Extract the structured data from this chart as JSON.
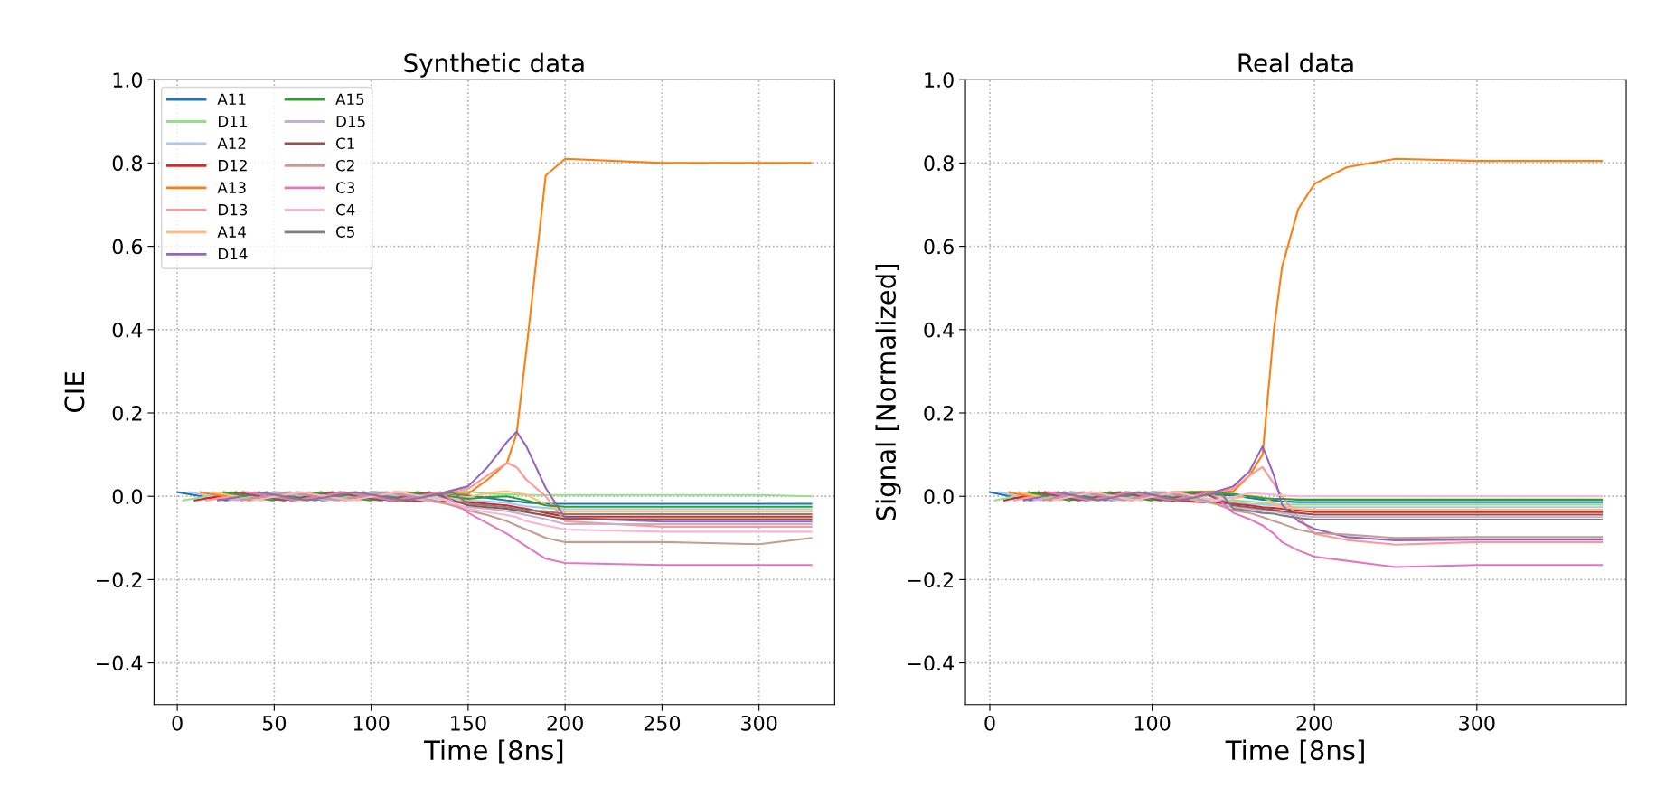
{
  "chart_data": [
    {
      "type": "line",
      "title": "Synthetic data",
      "xlabel": "Time [8ns]",
      "ylabel": "CIE",
      "xlim": [
        -12,
        339
      ],
      "xticks": [
        0,
        50,
        100,
        150,
        200,
        250,
        300
      ],
      "ylim": [
        -0.5,
        1.0
      ],
      "yticks": [
        {
          "value": -0.4,
          "label": "−0.4"
        },
        {
          "value": -0.2,
          "label": "−0.2"
        },
        {
          "value": 0,
          "label": "0.0"
        },
        {
          "value": 0.2,
          "label": "0.2"
        },
        {
          "value": 0.4,
          "label": "0.4"
        },
        {
          "value": 0.6,
          "label": "0.6"
        },
        {
          "value": 0.8,
          "label": "0.8"
        },
        {
          "value": 1.0,
          "label": "1.0"
        }
      ],
      "grid": true,
      "legend": "top left",
      "line_style": "solid",
      "marker": "none",
      "series": [
        {
          "name": "A11",
          "color": "#1f77b4",
          "x": [
            0,
            25,
            50,
            75,
            100,
            150,
            160,
            170,
            175,
            180,
            190,
            200,
            250,
            300,
            327
          ],
          "values": [
            0.01,
            -0.01,
            0.01,
            -0.01,
            0.01,
            0.002,
            -0.004,
            -0.01,
            -0.012,
            -0.015,
            -0.018,
            -0.018,
            -0.018,
            -0.018,
            -0.018
          ]
        },
        {
          "name": "D11",
          "color": "#98df8a",
          "x": [
            3,
            28,
            53,
            78,
            103,
            150,
            160,
            170,
            175,
            180,
            190,
            200,
            250,
            300,
            327
          ],
          "values": [
            -0.01,
            0.01,
            -0.01,
            0.01,
            -0.01,
            0.012,
            0.006,
            0.005,
            0.004,
            0.003,
            0.003,
            0.003,
            0.003,
            0.003,
            0.0
          ]
        },
        {
          "name": "A12",
          "color": "#aec7e8",
          "x": [
            6,
            31,
            56,
            81,
            106,
            150,
            160,
            170,
            175,
            180,
            190,
            200,
            250,
            300,
            327
          ],
          "values": [
            0.01,
            -0.01,
            0.01,
            -0.01,
            0.01,
            -0.01,
            -0.012,
            -0.016,
            -0.02,
            -0.024,
            -0.028,
            -0.031,
            -0.031,
            -0.031,
            -0.031
          ]
        },
        {
          "name": "D12",
          "color": "#d62728",
          "x": [
            9,
            34,
            59,
            84,
            109,
            150,
            160,
            170,
            175,
            180,
            190,
            200,
            250,
            300,
            327
          ],
          "values": [
            -0.01,
            0.01,
            -0.01,
            0.01,
            -0.01,
            -0.014,
            -0.018,
            -0.022,
            -0.026,
            -0.03,
            -0.04,
            -0.049,
            -0.049,
            -0.049,
            -0.049
          ]
        },
        {
          "name": "A13",
          "color": "#ff7f0e",
          "x": [
            12,
            37,
            62,
            87,
            112,
            150,
            160,
            170,
            175,
            180,
            190,
            200,
            250,
            300,
            327
          ],
          "values": [
            0.01,
            -0.01,
            0.01,
            -0.01,
            0.01,
            0.006,
            0.04,
            0.08,
            0.15,
            0.35,
            0.77,
            0.81,
            0.8,
            0.8,
            0.8
          ]
        },
        {
          "name": "D13",
          "color": "#ff9896",
          "x": [
            15,
            40,
            65,
            90,
            115,
            150,
            160,
            170,
            175,
            180,
            190,
            200,
            250,
            300,
            327
          ],
          "values": [
            -0.01,
            0.01,
            -0.01,
            0.01,
            -0.01,
            0.018,
            0.05,
            0.08,
            0.07,
            0.04,
            0.0,
            -0.06,
            -0.073,
            -0.073,
            -0.073
          ]
        },
        {
          "name": "A14",
          "color": "#ffbb78",
          "x": [
            18,
            43,
            68,
            93,
            118,
            150,
            160,
            170,
            175,
            180,
            190,
            200,
            250,
            300,
            327
          ],
          "values": [
            0.01,
            -0.01,
            0.01,
            -0.01,
            0.01,
            -0.002,
            0.008,
            0.012,
            0.008,
            0.004,
            -0.02,
            -0.037,
            -0.037,
            -0.037,
            -0.037
          ]
        },
        {
          "name": "D14",
          "color": "#9467bd",
          "x": [
            21,
            46,
            71,
            96,
            121,
            150,
            160,
            170,
            175,
            180,
            190,
            200,
            250,
            300,
            327
          ],
          "values": [
            -0.01,
            0.01,
            -0.01,
            0.01,
            -0.01,
            0.024,
            0.07,
            0.13,
            0.155,
            0.12,
            0.02,
            -0.052,
            -0.061,
            -0.061,
            -0.061
          ]
        },
        {
          "name": "A15",
          "color": "#2ca02c",
          "x": [
            24,
            49,
            74,
            99,
            124,
            150,
            160,
            170,
            175,
            180,
            190,
            200,
            250,
            300,
            327
          ],
          "values": [
            0.01,
            -0.01,
            0.01,
            -0.01,
            0.01,
            -0.006,
            -0.002,
            0.0,
            -0.005,
            -0.01,
            -0.022,
            -0.025,
            -0.025,
            -0.025,
            -0.025
          ]
        },
        {
          "name": "D15",
          "color": "#c5b0d5",
          "x": [
            27,
            52,
            77,
            102,
            127,
            150,
            160,
            170,
            175,
            180,
            190,
            200,
            250,
            300,
            327
          ],
          "values": [
            -0.01,
            0.01,
            -0.01,
            0.01,
            -0.01,
            -0.026,
            -0.03,
            -0.036,
            -0.04,
            -0.045,
            -0.055,
            -0.067,
            -0.067,
            -0.067,
            -0.067
          ]
        },
        {
          "name": "C1",
          "color": "#8c564b",
          "x": [
            30,
            55,
            80,
            105,
            130,
            150,
            160,
            170,
            175,
            180,
            190,
            200,
            250,
            300,
            327
          ],
          "values": [
            0.01,
            -0.01,
            0.01,
            -0.01,
            0.01,
            -0.022,
            -0.026,
            -0.03,
            -0.034,
            -0.038,
            -0.046,
            -0.055,
            -0.055,
            -0.055,
            -0.055
          ]
        },
        {
          "name": "C2",
          "color": "#c49c94",
          "x": [
            33,
            58,
            83,
            108,
            133,
            150,
            160,
            170,
            175,
            180,
            190,
            200,
            250,
            300,
            327
          ],
          "values": [
            -0.01,
            0.01,
            -0.01,
            0.01,
            -0.01,
            -0.034,
            -0.045,
            -0.06,
            -0.07,
            -0.08,
            -0.1,
            -0.11,
            -0.11,
            -0.115,
            -0.1
          ]
        },
        {
          "name": "C3",
          "color": "#e377c2",
          "x": [
            36,
            61,
            86,
            111,
            136,
            150,
            160,
            170,
            175,
            180,
            190,
            200,
            250,
            300,
            327
          ],
          "values": [
            0.01,
            -0.01,
            0.01,
            -0.01,
            0.01,
            -0.04,
            -0.065,
            -0.09,
            -0.105,
            -0.12,
            -0.15,
            -0.16,
            -0.165,
            -0.165,
            -0.165
          ]
        },
        {
          "name": "C4",
          "color": "#f7b6d2",
          "x": [
            39,
            64,
            89,
            114,
            139,
            150,
            160,
            170,
            175,
            180,
            190,
            200,
            250,
            300,
            327
          ],
          "values": [
            -0.01,
            0.01,
            -0.01,
            0.01,
            -0.01,
            -0.03,
            -0.038,
            -0.045,
            -0.05,
            -0.06,
            -0.07,
            -0.08,
            -0.085,
            -0.085,
            -0.085
          ]
        },
        {
          "name": "C5",
          "color": "#7f7f7f",
          "x": [
            42,
            67,
            92,
            117,
            142,
            150,
            160,
            170,
            175,
            180,
            190,
            200,
            250,
            300,
            327
          ],
          "values": [
            0.01,
            -0.01,
            0.01,
            -0.01,
            0.01,
            -0.018,
            -0.022,
            -0.026,
            -0.03,
            -0.034,
            -0.036,
            -0.043,
            -0.043,
            -0.043,
            -0.043
          ]
        }
      ]
    },
    {
      "type": "line",
      "title": "Real data",
      "xlabel": "Time [8ns]",
      "ylabel": "Signal [Normalized]",
      "xlim": [
        -15,
        392
      ],
      "xticks": [
        0,
        100,
        200,
        300
      ],
      "ylim": [
        -0.5,
        1.0
      ],
      "yticks": [
        {
          "value": -0.4,
          "label": "−0.4"
        },
        {
          "value": -0.2,
          "label": "−0.2"
        },
        {
          "value": 0,
          "label": "0.0"
        },
        {
          "value": 0.2,
          "label": "0.2"
        },
        {
          "value": 0.4,
          "label": "0.4"
        },
        {
          "value": 0.6,
          "label": "0.6"
        },
        {
          "value": 0.8,
          "label": "0.8"
        },
        {
          "value": 1.0,
          "label": "1.0"
        }
      ],
      "grid": true,
      "line_style": "solid",
      "marker": "none",
      "series": [
        {
          "color": "#1f77b4",
          "x": [
            0,
            25,
            50,
            75,
            100,
            150,
            160,
            168,
            175,
            180,
            190,
            200,
            220,
            250,
            300,
            377
          ],
          "values": [
            0.01,
            -0.01,
            0.01,
            -0.01,
            0.01,
            0.002,
            -0.004,
            -0.008,
            -0.01,
            -0.012,
            -0.014,
            -0.014,
            -0.014,
            -0.014,
            -0.014,
            -0.014
          ]
        },
        {
          "color": "#98df8a",
          "x": [
            3,
            28,
            53,
            78,
            103,
            150,
            160,
            168,
            175,
            180,
            190,
            200,
            220,
            250,
            300,
            377
          ],
          "values": [
            -0.01,
            0.01,
            -0.01,
            0.01,
            -0.01,
            -0.01,
            -0.012,
            -0.016,
            -0.018,
            -0.02,
            -0.02,
            -0.02,
            -0.02,
            -0.02,
            -0.02,
            -0.02
          ]
        },
        {
          "color": "#aec7e8",
          "x": [
            6,
            31,
            56,
            81,
            106,
            150,
            160,
            168,
            175,
            180,
            190,
            200,
            220,
            250,
            300,
            377
          ],
          "values": [
            0.01,
            -0.01,
            0.01,
            -0.01,
            0.01,
            -0.014,
            -0.018,
            -0.02,
            -0.022,
            -0.024,
            -0.026,
            -0.026,
            -0.026,
            -0.026,
            -0.026,
            -0.026
          ]
        },
        {
          "color": "#d62728",
          "x": [
            9,
            34,
            59,
            84,
            109,
            150,
            160,
            168,
            175,
            180,
            190,
            200,
            220,
            250,
            300,
            377
          ],
          "values": [
            -0.01,
            0.01,
            -0.01,
            0.01,
            -0.01,
            -0.018,
            -0.022,
            -0.026,
            -0.028,
            -0.03,
            -0.034,
            -0.038,
            -0.038,
            -0.038,
            -0.038,
            -0.038
          ]
        },
        {
          "color": "#ff7f0e",
          "x": [
            12,
            37,
            62,
            87,
            112,
            150,
            160,
            168,
            175,
            180,
            190,
            200,
            220,
            250,
            300,
            377
          ],
          "values": [
            0.01,
            -0.01,
            0.01,
            -0.01,
            0.01,
            0.012,
            0.05,
            0.1,
            0.4,
            0.55,
            0.69,
            0.75,
            0.79,
            0.81,
            0.805,
            0.805
          ]
        },
        {
          "color": "#ff9896",
          "x": [
            15,
            40,
            65,
            90,
            115,
            150,
            160,
            168,
            175,
            180,
            190,
            200,
            220,
            250,
            300,
            377
          ],
          "values": [
            -0.01,
            0.01,
            -0.01,
            0.01,
            -0.01,
            0.018,
            0.05,
            0.07,
            0.03,
            0.0,
            -0.05,
            -0.09,
            -0.105,
            -0.116,
            -0.11,
            -0.11
          ]
        },
        {
          "color": "#ffbb78",
          "x": [
            18,
            43,
            68,
            93,
            118,
            150,
            160,
            168,
            175,
            180,
            190,
            200,
            220,
            250,
            300,
            377
          ],
          "values": [
            0.01,
            -0.01,
            0.01,
            -0.01,
            0.01,
            -0.006,
            0.002,
            -0.002,
            -0.016,
            -0.026,
            -0.03,
            -0.032,
            -0.032,
            -0.032,
            -0.032,
            -0.032
          ]
        },
        {
          "color": "#9467bd",
          "x": [
            21,
            46,
            71,
            96,
            121,
            150,
            160,
            168,
            175,
            180,
            190,
            200,
            220,
            250,
            300,
            377
          ],
          "values": [
            -0.01,
            0.01,
            -0.01,
            0.01,
            -0.01,
            0.024,
            0.06,
            0.12,
            0.05,
            -0.02,
            -0.06,
            -0.078,
            -0.098,
            -0.106,
            -0.104,
            -0.104
          ]
        },
        {
          "color": "#2ca02c",
          "x": [
            24,
            49,
            74,
            99,
            124,
            150,
            160,
            168,
            175,
            180,
            190,
            200,
            220,
            250,
            300,
            377
          ],
          "values": [
            0.01,
            -0.01,
            0.01,
            -0.01,
            0.01,
            0.006,
            0.0,
            -0.004,
            -0.006,
            -0.006,
            -0.008,
            -0.008,
            -0.008,
            -0.008,
            -0.008,
            -0.008
          ]
        },
        {
          "color": "#c5b0d5",
          "x": [
            27,
            52,
            77,
            102,
            127,
            150,
            160,
            168,
            175,
            180,
            190,
            200,
            220,
            250,
            300,
            377
          ],
          "values": [
            -0.01,
            0.01,
            -0.01,
            0.01,
            -0.01,
            -0.026,
            -0.03,
            -0.034,
            -0.036,
            -0.04,
            -0.046,
            -0.05,
            -0.05,
            -0.05,
            -0.05,
            -0.05
          ]
        },
        {
          "color": "#8c564b",
          "x": [
            30,
            55,
            80,
            105,
            130,
            150,
            160,
            168,
            175,
            180,
            190,
            200,
            220,
            250,
            300,
            377
          ],
          "values": [
            0.01,
            -0.01,
            0.01,
            -0.01,
            0.01,
            -0.022,
            -0.026,
            -0.03,
            -0.033,
            -0.036,
            -0.04,
            -0.044,
            -0.044,
            -0.044,
            -0.044,
            -0.044
          ]
        },
        {
          "color": "#c49c94",
          "x": [
            33,
            58,
            83,
            108,
            133,
            150,
            160,
            168,
            175,
            180,
            190,
            200,
            220,
            250,
            300,
            377
          ],
          "values": [
            -0.01,
            0.01,
            -0.01,
            0.01,
            -0.01,
            -0.034,
            -0.04,
            -0.05,
            -0.06,
            -0.066,
            -0.08,
            -0.088,
            -0.092,
            -0.1,
            -0.098,
            -0.098
          ]
        },
        {
          "color": "#e377c2",
          "x": [
            36,
            61,
            86,
            111,
            136,
            150,
            160,
            168,
            175,
            180,
            190,
            200,
            220,
            250,
            300,
            377
          ],
          "values": [
            0.01,
            -0.01,
            0.01,
            -0.01,
            0.01,
            -0.04,
            -0.055,
            -0.07,
            -0.09,
            -0.11,
            -0.13,
            -0.145,
            -0.155,
            -0.17,
            -0.165,
            -0.165
          ]
        },
        {
          "color": "#f7b6d2",
          "x": [
            39,
            64,
            89,
            114,
            139,
            150,
            160,
            168,
            175,
            180,
            190,
            200,
            220,
            250,
            300,
            377
          ],
          "values": [
            -0.01,
            0.01,
            -0.01,
            0.01,
            -0.01,
            -0.002,
            0.008,
            0.006,
            0.004,
            0.002,
            0.0,
            0.0,
            0.0,
            0.0,
            0.0,
            0.0
          ]
        },
        {
          "color": "#7f7f7f",
          "x": [
            42,
            67,
            92,
            117,
            142,
            150,
            160,
            168,
            175,
            180,
            190,
            200,
            220,
            250,
            300,
            377
          ],
          "values": [
            0.01,
            -0.01,
            0.01,
            -0.01,
            0.01,
            -0.03,
            -0.035,
            -0.04,
            -0.042,
            -0.046,
            -0.052,
            -0.056,
            -0.056,
            -0.056,
            -0.056,
            -0.056
          ]
        }
      ]
    }
  ]
}
